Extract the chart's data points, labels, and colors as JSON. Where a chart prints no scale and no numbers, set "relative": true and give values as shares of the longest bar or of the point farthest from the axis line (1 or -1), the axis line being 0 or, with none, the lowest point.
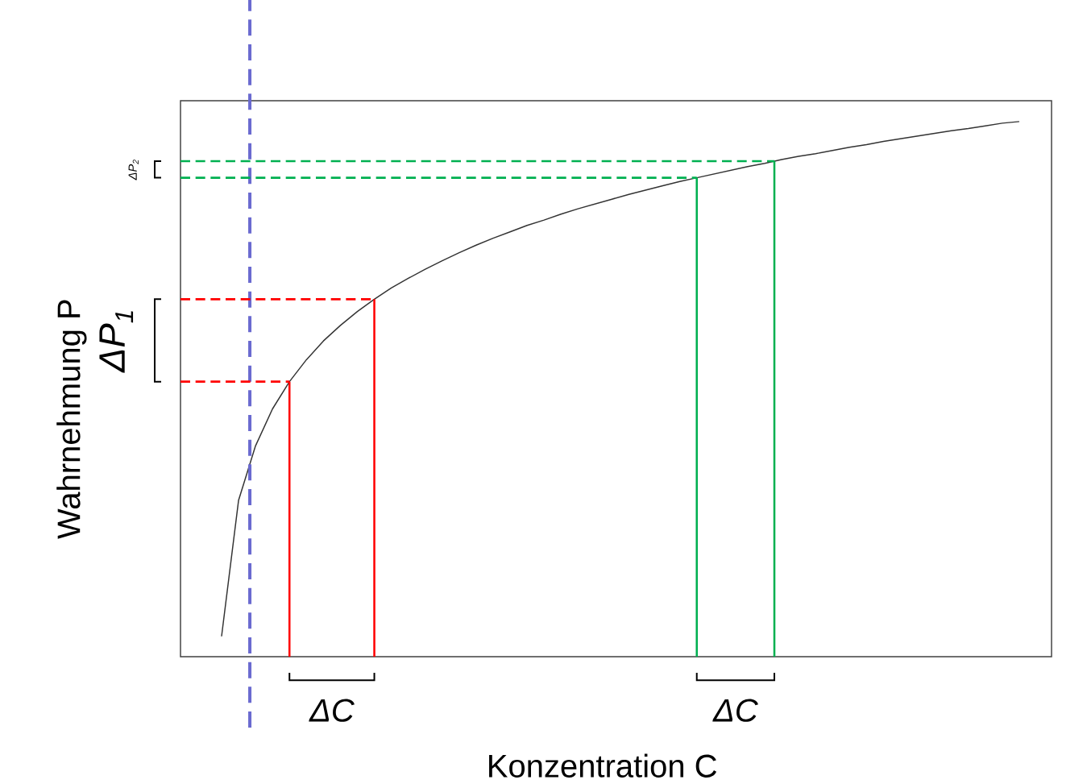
{
  "chart_data": {
    "type": "line",
    "relative": true,
    "xlabel": "Konzentration C",
    "ylabel": "Wahrnehmung P",
    "categories": [
      null,
      null,
      null,
      null,
      null,
      null,
      null,
      null,
      null,
      null,
      null,
      null,
      null,
      null,
      null,
      null,
      null,
      null,
      null,
      null,
      null,
      null,
      null,
      null,
      null,
      null,
      null,
      null,
      null,
      null,
      null,
      null,
      null,
      null,
      null,
      null,
      null,
      null,
      null,
      null,
      null,
      null,
      null,
      null,
      null,
      null,
      null,
      null
    ],
    "series": [
      {
        "color": "#333333",
        "values": [
          0.038,
          0.292,
          0.394,
          0.463,
          0.514,
          0.555,
          0.59,
          0.619,
          0.645,
          0.668,
          0.689,
          0.707,
          0.724,
          0.74,
          0.755,
          0.769,
          0.782,
          0.794,
          0.806,
          0.816,
          0.827,
          0.837,
          0.846,
          0.855,
          0.864,
          0.872,
          0.88,
          0.888,
          0.895,
          0.902,
          0.909,
          0.916,
          0.922,
          0.929,
          0.935,
          0.94,
          0.946,
          0.952,
          0.957,
          0.963,
          0.968,
          0.973,
          0.978,
          0.983,
          0.987,
          0.992,
          0.997,
          1.0
        ]
      }
    ],
    "ref_lines": [
      {
        "axis": "y",
        "value": 0.514,
        "color": "#ff0000",
        "line_style": "dashed"
      },
      {
        "axis": "y",
        "value": 0.668,
        "color": "#ff0000",
        "line_style": "dashed"
      },
      {
        "axis": "y",
        "value": 0.895,
        "color": "#00b050",
        "line_style": "dashed"
      },
      {
        "axis": "y",
        "value": 0.926,
        "color": "#00b050",
        "line_style": "dashed"
      }
    ],
    "annotations": [
      "ΔC",
      "ΔC",
      "ΔP$_{1}$",
      "ΔP$_{2}$"
    ],
    "marker": "none",
    "line_style": "solid"
  }
}
